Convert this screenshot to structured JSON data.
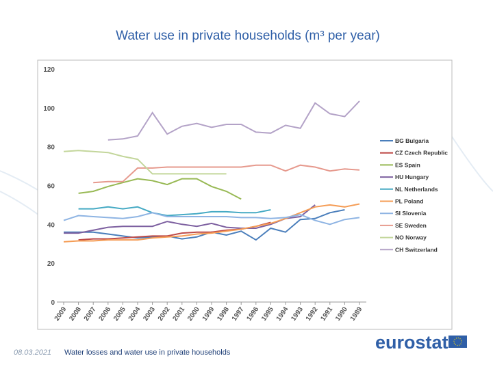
{
  "chart_data": {
    "type": "line",
    "title": "Water use in private households (m³ per year)",
    "categories": [
      "2009",
      "2008",
      "2007",
      "2006",
      "2005",
      "2004",
      "2003",
      "2002",
      "2001",
      "2000",
      "1999",
      "1998",
      "1997",
      "1996",
      "1995",
      "1994",
      "1993",
      "1992",
      "1991",
      "1990",
      "1989"
    ],
    "ylim": [
      0,
      120
    ],
    "yticks": [
      0,
      20,
      40,
      60,
      80,
      100,
      120
    ],
    "grid": false,
    "series": [
      {
        "name": "BG Bulgaria",
        "color": "#4a7ebb",
        "values": [
          36,
          36,
          36,
          35,
          34,
          33,
          33.5,
          34,
          32.5,
          33.5,
          36,
          34.5,
          36.5,
          32,
          38,
          36,
          42.5,
          43,
          46,
          47.5,
          null
        ]
      },
      {
        "name": "CZ Czech Republic",
        "color": "#be4b48",
        "values": [
          null,
          32,
          32.5,
          32.5,
          33,
          33.5,
          34,
          34,
          35.5,
          36,
          36,
          37,
          37.5,
          39,
          41,
          null,
          null,
          null,
          null,
          null,
          null
        ]
      },
      {
        "name": "ES Spain",
        "color": "#98b954",
        "values": [
          null,
          56,
          57,
          59.5,
          61.5,
          63.5,
          62.5,
          60.5,
          63.5,
          63.5,
          59.5,
          57,
          53,
          null,
          null,
          null,
          null,
          null,
          null,
          null,
          null
        ]
      },
      {
        "name": "HU Hungary",
        "color": "#7d60a0",
        "values": [
          35.5,
          35.5,
          37,
          38.5,
          39,
          39,
          39,
          41.5,
          40,
          39,
          40.5,
          38.5,
          38,
          38,
          40,
          43,
          44,
          50,
          null,
          null,
          null
        ]
      },
      {
        "name": "NL Netherlands",
        "color": "#46aac4",
        "values": [
          null,
          48,
          48,
          49,
          48,
          49,
          46,
          44.5,
          45,
          45.5,
          46.5,
          46.5,
          46,
          46,
          47.5,
          null,
          null,
          null,
          null,
          null,
          null
        ]
      },
      {
        "name": "PL Poland",
        "color": "#f59d56",
        "values": [
          31,
          31.5,
          31.5,
          32,
          32,
          32,
          33,
          33.5,
          34,
          35,
          35.5,
          36.5,
          37.5,
          39,
          40.5,
          43,
          46,
          49,
          50,
          49,
          50.5
        ]
      },
      {
        "name": "SI Slovenia",
        "color": "#8eb4e3",
        "values": [
          42,
          44.5,
          44,
          43.5,
          43,
          44,
          46,
          44,
          44,
          44,
          44,
          44,
          43.5,
          43.5,
          43,
          43.5,
          45,
          42,
          40,
          42.5,
          43.5
        ]
      },
      {
        "name": "SE Sweden",
        "color": "#e6998d",
        "values": [
          null,
          null,
          61.5,
          62,
          62,
          69,
          69,
          69.5,
          69.5,
          69.5,
          69.5,
          69.5,
          69.5,
          70.5,
          70.5,
          67.5,
          70.5,
          69.5,
          67.5,
          68.5,
          68
        ]
      },
      {
        "name": "NO Norway",
        "color": "#c3d69b",
        "values": [
          77.5,
          78,
          77.5,
          77,
          75,
          73.5,
          66,
          66,
          66,
          66,
          66,
          66,
          null,
          null,
          null,
          null,
          null,
          null,
          null,
          null,
          null
        ]
      },
      {
        "name": "CH Switzerland",
        "color": "#b3a2c7",
        "values": [
          null,
          null,
          null,
          83.5,
          84,
          85.5,
          97.5,
          86.5,
          90.5,
          92,
          90,
          91.5,
          91.5,
          87.5,
          87,
          91,
          89.5,
          102.5,
          97,
          95.5,
          103.5
        ]
      }
    ]
  },
  "footer": {
    "date": "08.03.2021",
    "text": "Water losses and water use in private households",
    "logo": "eurostat"
  }
}
